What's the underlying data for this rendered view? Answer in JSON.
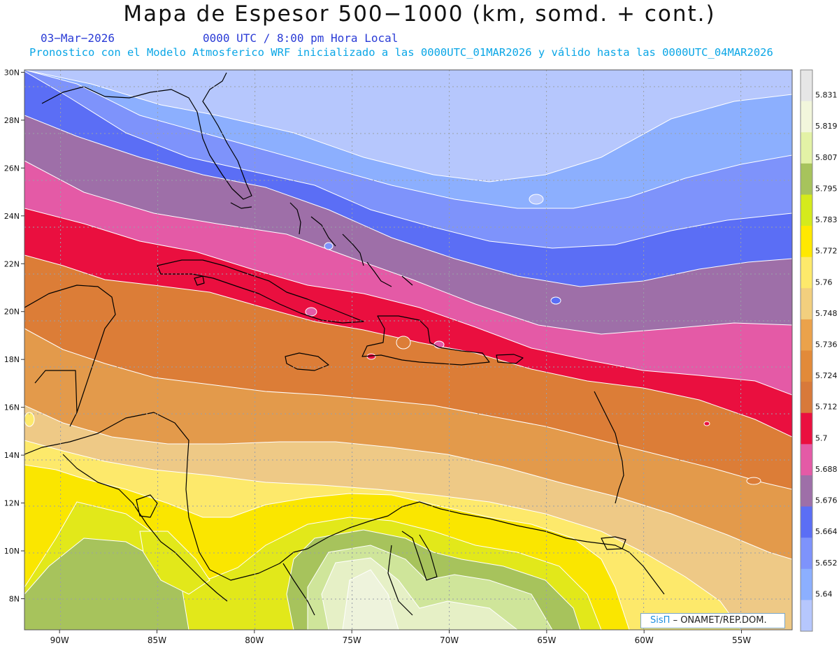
{
  "header": {
    "title": "Mapa de Espesor 500−1000 (km, somd. + cont.)",
    "date": "03−Mar−2026",
    "time": "0000 UTC / 8:00 pm Hora Local",
    "subtitle": "Pronostico con el Modelo Atmosferico WRF inicializado a las 0000UTC_01MAR2026 y válido hasta las  0000UTC_04MAR2026"
  },
  "credit": {
    "brand": "SisΠ",
    "text": "– ONAMET/REP.DOM."
  },
  "map": {
    "lon_ticks": [
      "90W",
      "85W",
      "80W",
      "75W",
      "70W",
      "65W",
      "60W",
      "55W"
    ],
    "lat_ticks": [
      "30N",
      "28N",
      "26N",
      "24N",
      "22N",
      "20N",
      "18N",
      "16N",
      "14N",
      "12N",
      "10N",
      "8N"
    ],
    "lon_values": [
      -90,
      -85,
      -80,
      -75,
      -70,
      -65,
      -60,
      -55
    ],
    "lat_values": [
      30,
      28,
      26,
      24,
      22,
      20,
      18,
      16,
      14,
      12,
      10,
      8
    ],
    "lon_range": [
      -91.8,
      -52.4
    ],
    "lat_range": [
      6.7,
      30.1
    ],
    "grid": true,
    "field": "500-1000 hPa thickness (km)",
    "bands_north_to_south": [
      "#b6c7fd",
      "#8caffe",
      "#7e93fb",
      "#5b6ef5",
      "#9e6fa8",
      "#e45aa6",
      "#ea0f3f",
      "#dc7d37",
      "#e39a4b",
      "#eec986",
      "#fde96b",
      "#fae600",
      "#e2e81a",
      "#a7c35c",
      "#cfe59a",
      "#e6f0c6",
      "#eef3dc"
    ]
  },
  "colorbar": {
    "labels": [
      "5.831",
      "5.819",
      "5.807",
      "5.795",
      "5.783",
      "5.772",
      "5.76",
      "5.748",
      "5.736",
      "5.724",
      "5.712",
      "5.7",
      "5.688",
      "5.676",
      "5.664",
      "5.652",
      "5.64"
    ],
    "colors": [
      "#e6e6e6",
      "#f2f6dc",
      "#e3f2a6",
      "#a7c35c",
      "#d5ea1c",
      "#ffe800",
      "#fde96b",
      "#f2cf7e",
      "#eba24b",
      "#e28a39",
      "#d8793a",
      "#ea0f3f",
      "#e45aa6",
      "#9e6fa8",
      "#5b6ef5",
      "#7e93fb",
      "#8caffe",
      "#b6c7fd"
    ]
  }
}
